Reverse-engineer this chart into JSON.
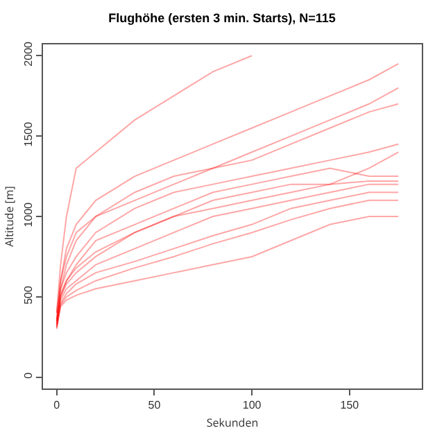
{
  "chart_data": {
    "type": "line",
    "title": "Flughöhe (ersten 3 min. Starts), N=115",
    "xlabel": "Sekunden",
    "ylabel": "Altitude [m]",
    "x": [
      0,
      2,
      5,
      10,
      20,
      40,
      60,
      80,
      100,
      120,
      140,
      160,
      175
    ],
    "xlim": [
      -7,
      187
    ],
    "xticks": [
      0,
      50,
      100,
      150
    ],
    "ylim": [
      -70,
      2070
    ],
    "yticks": [
      0,
      500,
      1000,
      1500,
      2000
    ],
    "grid": false,
    "marker": "none",
    "line_style": "solid",
    "series": [
      {
        "color": "#ff0000",
        "values": [
          400,
          700,
          1000,
          1300,
          1400,
          1600,
          1750,
          1900,
          2000,
          null,
          null,
          null,
          null
        ]
      },
      {
        "color": "#ff0000",
        "values": [
          400,
          600,
          800,
          950,
          1100,
          1250,
          1350,
          1450,
          1550,
          1650,
          1750,
          1850,
          1950
        ]
      },
      {
        "color": "#ff0000",
        "values": [
          350,
          550,
          700,
          850,
          1000,
          1150,
          1250,
          1300,
          1350,
          1450,
          1550,
          1650,
          1700
        ]
      },
      {
        "color": "#ff0000",
        "values": [
          350,
          550,
          650,
          750,
          900,
          1050,
          1150,
          1200,
          1250,
          1300,
          1350,
          1400,
          1450
        ]
      },
      {
        "color": "#ff0000",
        "values": [
          330,
          500,
          600,
          700,
          850,
          950,
          1050,
          1150,
          1200,
          1250,
          1300,
          1250,
          1250
        ]
      },
      {
        "color": "#ff0000",
        "values": [
          330,
          500,
          580,
          650,
          750,
          900,
          1000,
          1100,
          1150,
          1200,
          1200,
          1220,
          1220
        ]
      },
      {
        "color": "#ff0000",
        "values": [
          320,
          480,
          550,
          600,
          700,
          800,
          900,
          1000,
          1050,
          1100,
          1150,
          1200,
          1200
        ]
      },
      {
        "color": "#ff0000",
        "values": [
          310,
          460,
          520,
          580,
          650,
          720,
          800,
          880,
          950,
          1050,
          1100,
          1150,
          1150
        ]
      },
      {
        "color": "#ff0000",
        "values": [
          300,
          450,
          500,
          540,
          600,
          680,
          750,
          830,
          900,
          980,
          1050,
          1100,
          1100
        ]
      },
      {
        "color": "#ff0000",
        "values": [
          310,
          440,
          480,
          510,
          550,
          600,
          650,
          700,
          750,
          850,
          950,
          1000,
          1000
        ]
      },
      {
        "color": "#ff0000",
        "values": [
          340,
          520,
          600,
          680,
          780,
          900,
          1000,
          1050,
          1100,
          1150,
          1200,
          1300,
          1400
        ]
      },
      {
        "color": "#ff0000",
        "values": [
          360,
          600,
          750,
          900,
          1000,
          1100,
          1200,
          1300,
          1400,
          1500,
          1600,
          1700,
          1800
        ]
      }
    ]
  }
}
